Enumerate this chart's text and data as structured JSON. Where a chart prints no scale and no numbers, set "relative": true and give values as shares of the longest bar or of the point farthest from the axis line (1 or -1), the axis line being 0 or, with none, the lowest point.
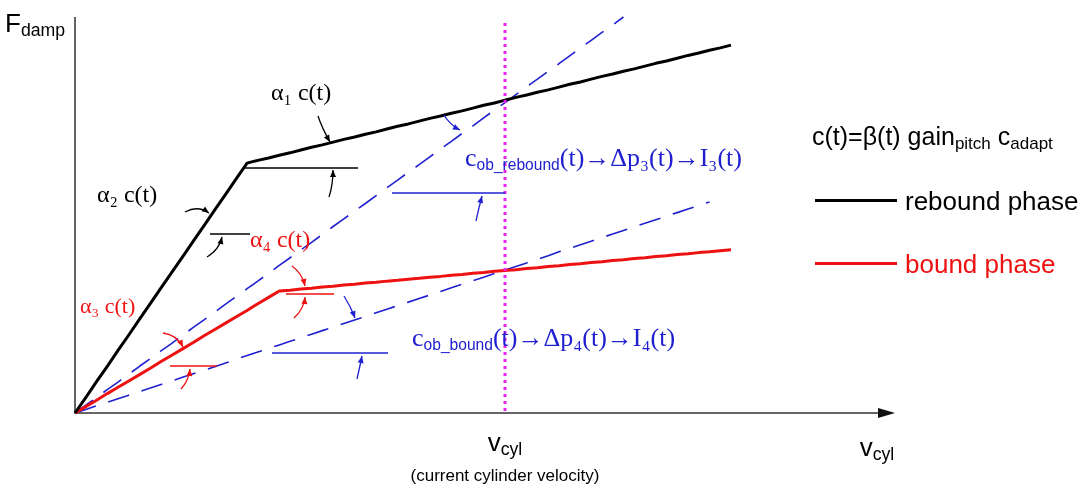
{
  "chart_data": {
    "type": "line",
    "relative": true,
    "ylabel": "F$_{damp}$",
    "xlabel": "v$_{cyl}$",
    "categories": [
      null,
      null,
      null,
      null,
      null,
      null,
      null,
      null,
      null,
      null,
      null,
      null,
      null,
      null,
      null,
      null,
      null,
      null,
      null,
      null,
      null,
      null,
      null,
      null,
      null,
      null,
      null,
      null,
      null,
      null,
      null,
      null,
      null,
      null,
      null,
      null,
      null,
      null,
      null,
      null,
      null,
      null,
      null,
      null,
      null,
      null,
      null,
      null,
      null,
      null,
      null,
      null,
      null,
      null,
      null,
      null,
      null,
      null,
      null,
      null,
      null,
      null
    ],
    "series": [
      {
        "name": "rebound phase",
        "color": "#000000",
        "values": [
          0,
          0.039,
          0.079,
          0.118,
          0.158,
          0.197,
          0.237,
          0.276,
          0.316,
          0.355,
          0.394,
          0.434,
          0.473,
          0.513,
          0.552,
          0.592,
          0.631,
          0.638,
          0.644,
          0.651,
          0.657,
          0.664,
          0.671,
          0.677,
          0.684,
          0.691,
          0.697,
          0.704,
          0.71,
          0.717,
          0.724,
          0.73,
          0.737,
          0.744,
          0.75,
          0.757,
          0.763,
          0.77,
          0.777,
          0.783,
          0.79,
          0.797,
          0.803,
          0.81,
          0.816,
          0.823,
          0.83,
          0.836,
          0.843,
          0.85,
          0.856,
          0.863,
          0.869,
          0.876,
          0.883,
          0.889,
          0.896,
          0.903,
          0.909,
          0.916,
          0.922,
          0.929
        ]
      },
      {
        "name": "bound phase",
        "color": "#ee1111",
        "values": [
          0,
          0.016,
          0.032,
          0.049,
          0.065,
          0.081,
          0.097,
          0.113,
          0.13,
          0.146,
          0.162,
          0.178,
          0.195,
          0.211,
          0.227,
          0.243,
          0.259,
          0.276,
          0.292,
          0.308,
          0.31,
          0.313,
          0.315,
          0.318,
          0.32,
          0.323,
          0.325,
          0.328,
          0.33,
          0.333,
          0.335,
          0.338,
          0.34,
          0.343,
          0.345,
          0.348,
          0.35,
          0.353,
          0.355,
          0.358,
          0.36,
          0.362,
          0.365,
          0.367,
          0.37,
          0.372,
          0.375,
          0.377,
          0.38,
          0.382,
          0.385,
          0.387,
          0.39,
          0.392,
          0.395,
          0.397,
          0.4,
          0.402,
          0.405,
          0.407,
          0.41,
          0.412
        ]
      },
      {
        "color": "#2020d0",
        "line_style": "dashed",
        "values": [
          0,
          0.02,
          0.039,
          0.059,
          0.078,
          0.098,
          0.118,
          0.137,
          0.157,
          0.176,
          0.196,
          0.216,
          0.235,
          0.255,
          0.275,
          0.294,
          0.314,
          0.333,
          0.353,
          0.373,
          0.392,
          0.412,
          0.431,
          0.451,
          0.471,
          0.49,
          0.51,
          0.529,
          0.549,
          0.569,
          0.588,
          0.608,
          0.627,
          0.647,
          0.667,
          0.686,
          0.706,
          0.725,
          0.745,
          0.765,
          0.784,
          0.804,
          0.824,
          0.843,
          0.863,
          0.882,
          0.902,
          0.922,
          0.941,
          0.961,
          0.98,
          1,
          null,
          null,
          null,
          null,
          null,
          null,
          null,
          null,
          null,
          null
        ]
      },
      {
        "color": "#2020d0",
        "line_style": "dashed",
        "values": [
          0,
          0.009,
          0.018,
          0.027,
          0.036,
          0.045,
          0.054,
          0.063,
          0.072,
          0.081,
          0.09,
          0.099,
          0.108,
          0.117,
          0.126,
          0.136,
          0.145,
          0.154,
          0.163,
          0.172,
          0.181,
          0.19,
          0.199,
          0.208,
          0.217,
          0.226,
          0.235,
          0.244,
          0.253,
          0.262,
          0.271,
          0.28,
          0.289,
          0.298,
          0.307,
          0.316,
          0.325,
          0.334,
          0.343,
          0.352,
          0.361,
          0.37,
          0.379,
          0.388,
          0.397,
          0.407,
          0.416,
          0.425,
          0.434,
          0.443,
          0.452,
          0.461,
          0.47,
          0.479,
          0.488,
          0.497,
          0.506,
          0.515,
          0.524,
          0.533,
          null,
          null
        ]
      }
    ],
    "annotations": [
      "α₁ c(t)",
      "α₂ c(t)",
      "α₃ c(t)",
      "α₄ c(t)",
      "c$_{ob_rebound}$(t)→Δp₃(t)→I₃(t)",
      "c$_{ob_bound}$(t)→Δp₄(t)→I₄(t)",
      "c(t)=β(t) gain$_{pitch}$ c$_{adapt}$",
      "v$_{cyl}$",
      "(current cylinder velocity)"
    ],
    "legend": "right",
    "marker": "none",
    "line_style": "solid"
  }
}
